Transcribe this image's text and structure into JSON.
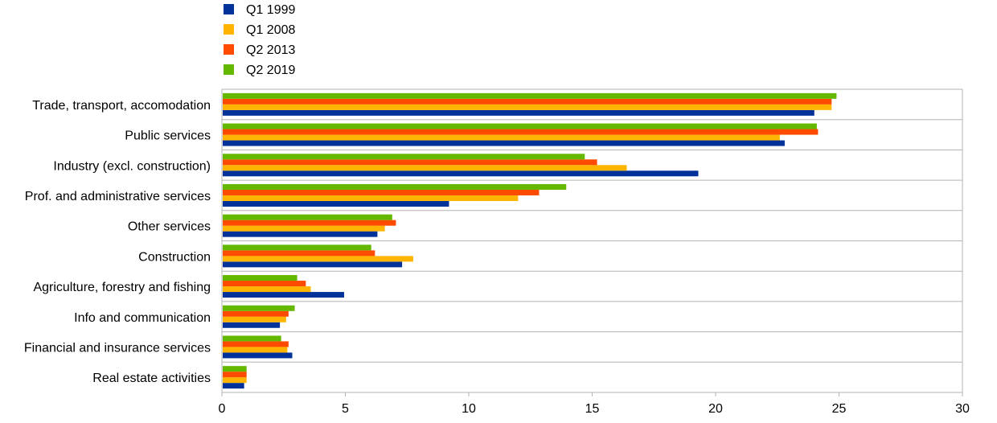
{
  "chart_data": {
    "type": "bar",
    "orientation": "horizontal",
    "title": "",
    "xlabel": "",
    "ylabel": "",
    "xlim": [
      0,
      30
    ],
    "x_ticks": [
      0,
      5,
      10,
      15,
      20,
      25,
      30
    ],
    "grid": "horizontal separators between categories",
    "legend_position": "top-left",
    "categories": [
      "Trade, transport, accomodation",
      "Public services",
      "Industry (excl. construction)",
      "Prof. and administrative services",
      "Other services",
      "Construction",
      "Agriculture, forestry and fishing",
      "Info and communication",
      "Financial and insurance services",
      "Real estate activities"
    ],
    "series": [
      {
        "name": "Q1 1999",
        "color": "#003299",
        "values": [
          24.0,
          22.8,
          19.3,
          9.2,
          6.3,
          7.3,
          4.95,
          2.35,
          2.85,
          0.9
        ]
      },
      {
        "name": "Q1 2008",
        "color": "#FFB400",
        "values": [
          24.7,
          22.6,
          16.4,
          12.0,
          6.6,
          7.75,
          3.6,
          2.6,
          2.65,
          1.0
        ]
      },
      {
        "name": "Q2 2013",
        "color": "#FF4B00",
        "values": [
          24.7,
          24.15,
          15.2,
          12.85,
          7.05,
          6.2,
          3.4,
          2.7,
          2.7,
          1.0
        ]
      },
      {
        "name": "Q2 2019",
        "color": "#65B800",
        "values": [
          24.9,
          24.1,
          14.7,
          13.95,
          6.9,
          6.05,
          3.05,
          2.95,
          2.4,
          1.0
        ]
      }
    ]
  }
}
